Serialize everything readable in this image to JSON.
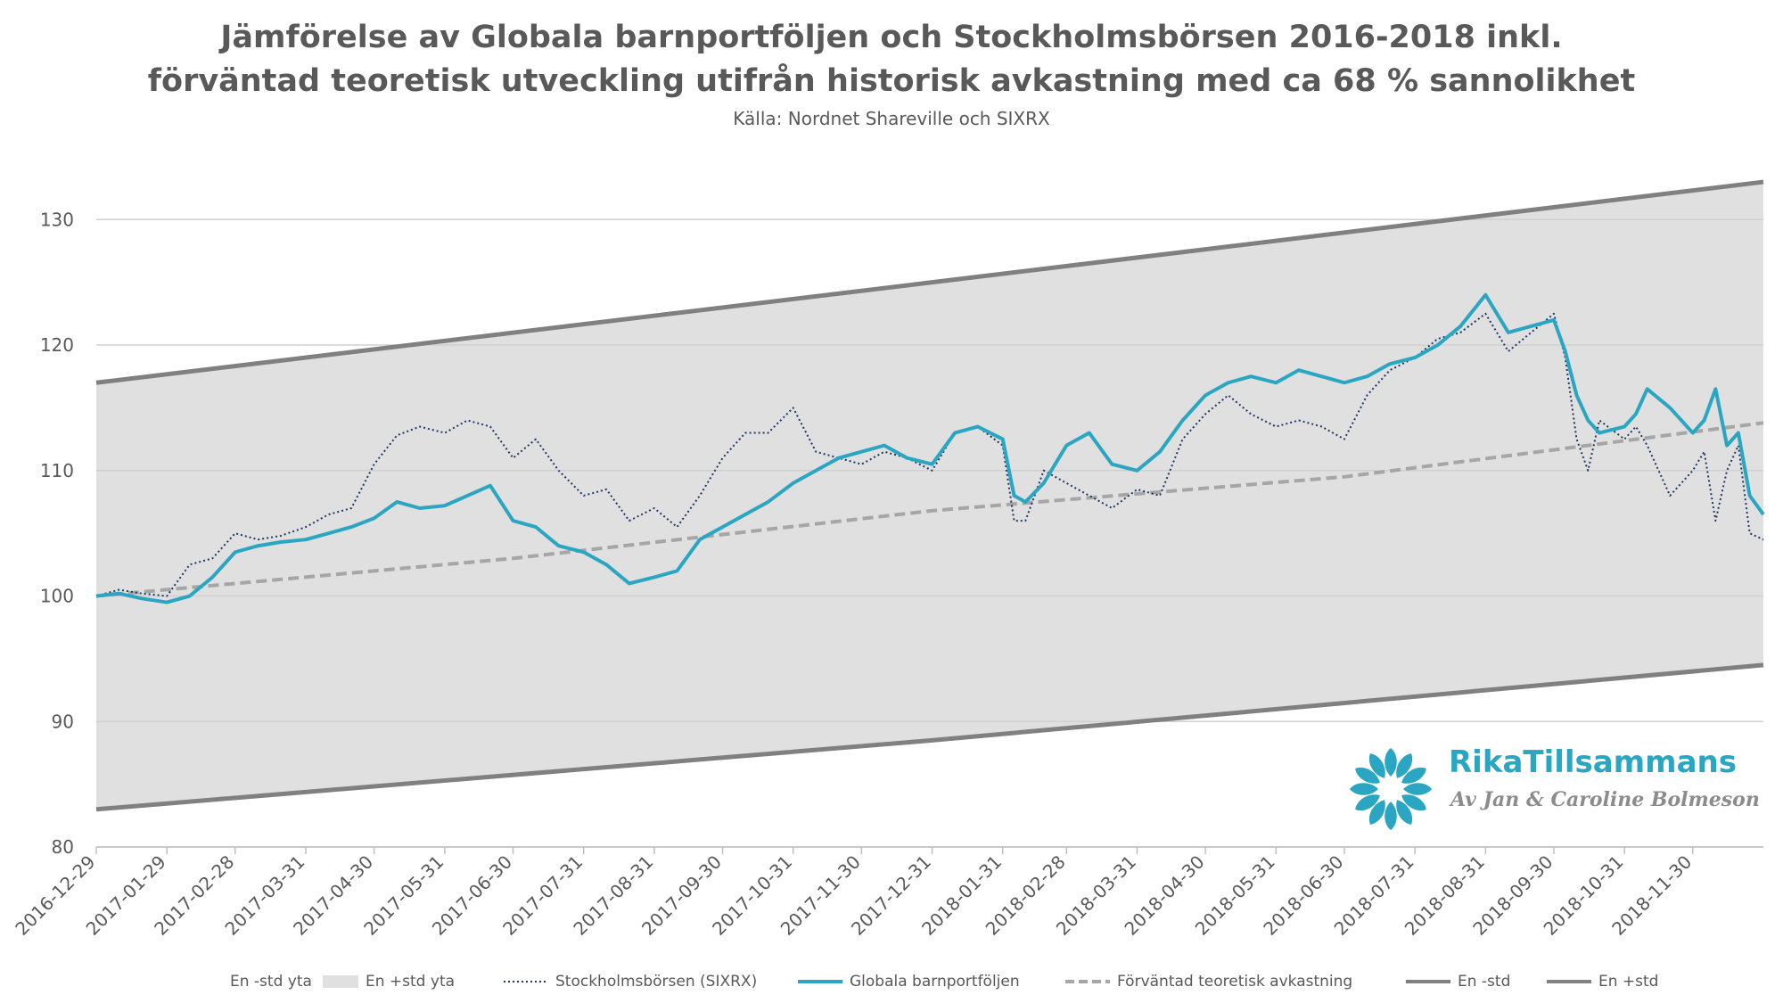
{
  "title_line1": "Jämförelse av Globala barnportföljen och Stockholmsbörsen 2016-2018 inkl.",
  "title_line2": "förväntad teoretisk utveckling utifrån historisk avkastning med ca 68 % sannolikhet",
  "subtitle": "Källa: Nordnet Shareville och SIXRX",
  "logo": {
    "name": "RikaTillsammans",
    "byline": "Av Jan & Caroline Bolmeson",
    "icon": "flower-icon",
    "color": "#2aa6c2"
  },
  "legend": [
    {
      "label": "En -std yta",
      "key": "lower_area"
    },
    {
      "label": "En +std yta",
      "key": "upper_area"
    },
    {
      "label": "Stockholmsbörsen (SIXRX)",
      "key": "sixrx"
    },
    {
      "label": "Globala barnportföljen",
      "key": "portfolio"
    },
    {
      "label": "Förväntad teoretisk avkastning",
      "key": "expected"
    },
    {
      "label": "En -std",
      "key": "lower"
    },
    {
      "label": "En +std",
      "key": "upper"
    }
  ],
  "chart_data": {
    "type": "line",
    "title": "Jämförelse av Globala barnportföljen och Stockholmsbörsen 2016-2018 inkl. förväntad teoretisk utveckling utifrån historisk avkastning med ca 68 % sannolikhet",
    "subtitle": "Källa: Nordnet Shareville och SIXRX",
    "xlabel": "",
    "ylabel": "",
    "ylim": [
      80,
      134
    ],
    "y_ticks": [
      80,
      90,
      100,
      110,
      120,
      130
    ],
    "x_ticks": [
      "2016-12-29",
      "2017-01-29",
      "2017-02-28",
      "2017-03-31",
      "2017-04-30",
      "2017-05-31",
      "2017-06-30",
      "2017-07-31",
      "2017-08-31",
      "2017-09-30",
      "2017-10-31",
      "2017-11-30",
      "2017-12-31",
      "2018-01-31",
      "2018-02-28",
      "2018-03-31",
      "2018-04-30",
      "2018-05-31",
      "2018-06-30",
      "2018-07-31",
      "2018-08-31",
      "2018-09-30",
      "2018-10-31",
      "2018-11-30"
    ],
    "x_range": [
      "2016-12-29",
      "2018-12-31"
    ],
    "grid": "horizontal",
    "legend_position": "bottom",
    "colors": {
      "portfolio": "#2aa6c2",
      "sixrx": "#1f3864",
      "expected": "#a6a6a6",
      "band": "#e0e0e0",
      "std_lines": "#808080"
    },
    "series": [
      {
        "name": "En +std",
        "key": "upper",
        "style": "solid",
        "x": [
          "2016-12-29",
          "2017-12-31",
          "2018-12-31"
        ],
        "values": [
          117.0,
          125.0,
          133.0
        ]
      },
      {
        "name": "En -std",
        "key": "lower",
        "style": "solid",
        "x": [
          "2016-12-29",
          "2017-12-31",
          "2018-12-31"
        ],
        "values": [
          83.0,
          88.5,
          94.5
        ]
      },
      {
        "name": "Förväntad teoretisk avkastning",
        "key": "expected",
        "style": "dashed",
        "x": [
          "2016-12-29",
          "2017-06-30",
          "2017-12-31",
          "2018-06-30",
          "2018-12-31"
        ],
        "values": [
          100.0,
          103.0,
          106.8,
          109.5,
          113.8
        ]
      },
      {
        "name": "Stockholmsbörsen (SIXRX)",
        "key": "sixrx",
        "style": "dotted",
        "x": [
          "2016-12-29",
          "2017-01-08",
          "2017-01-18",
          "2017-01-29",
          "2017-02-08",
          "2017-02-18",
          "2017-02-28",
          "2017-03-10",
          "2017-03-20",
          "2017-03-31",
          "2017-04-10",
          "2017-04-20",
          "2017-04-30",
          "2017-05-10",
          "2017-05-20",
          "2017-05-31",
          "2017-06-10",
          "2017-06-20",
          "2017-06-30",
          "2017-07-10",
          "2017-07-20",
          "2017-07-31",
          "2017-08-10",
          "2017-08-20",
          "2017-08-31",
          "2017-09-10",
          "2017-09-20",
          "2017-09-30",
          "2017-10-10",
          "2017-10-20",
          "2017-10-31",
          "2017-11-10",
          "2017-11-20",
          "2017-11-30",
          "2017-12-10",
          "2017-12-20",
          "2017-12-31",
          "2018-01-10",
          "2018-01-20",
          "2018-01-31",
          "2018-02-05",
          "2018-02-10",
          "2018-02-18",
          "2018-02-28",
          "2018-03-10",
          "2018-03-20",
          "2018-03-31",
          "2018-04-10",
          "2018-04-20",
          "2018-04-30",
          "2018-05-10",
          "2018-05-20",
          "2018-05-31",
          "2018-06-10",
          "2018-06-20",
          "2018-06-30",
          "2018-07-10",
          "2018-07-20",
          "2018-07-31",
          "2018-08-10",
          "2018-08-20",
          "2018-08-31",
          "2018-09-10",
          "2018-09-20",
          "2018-09-30",
          "2018-10-05",
          "2018-10-10",
          "2018-10-15",
          "2018-10-20",
          "2018-10-31",
          "2018-11-05",
          "2018-11-10",
          "2018-11-20",
          "2018-11-30",
          "2018-12-05",
          "2018-12-10",
          "2018-12-15",
          "2018-12-20",
          "2018-12-25",
          "2018-12-31"
        ],
        "values": [
          100.0,
          100.5,
          100.2,
          100.0,
          102.5,
          103.0,
          105.0,
          104.5,
          104.8,
          105.5,
          106.5,
          107.0,
          110.5,
          112.8,
          113.5,
          113.0,
          114.0,
          113.5,
          111.0,
          112.5,
          110.0,
          108.0,
          108.5,
          106.0,
          107.0,
          105.5,
          108.0,
          111.0,
          113.0,
          113.0,
          115.0,
          111.5,
          111.0,
          110.5,
          111.5,
          111.0,
          110.0,
          113.0,
          113.5,
          112.0,
          106.0,
          106.0,
          110.0,
          109.0,
          108.0,
          107.0,
          108.5,
          108.0,
          112.5,
          114.5,
          116.0,
          114.5,
          113.5,
          114.0,
          113.5,
          112.5,
          116.0,
          118.0,
          119.0,
          120.5,
          121.0,
          122.5,
          119.5,
          121.0,
          122.5,
          119.0,
          112.5,
          110.0,
          114.0,
          112.5,
          113.5,
          112.0,
          108.0,
          110.0,
          111.5,
          106.0,
          110.0,
          112.0,
          105.0,
          104.5
        ]
      },
      {
        "name": "Globala barnportföljen",
        "key": "portfolio",
        "style": "solid",
        "x": [
          "2016-12-29",
          "2017-01-08",
          "2017-01-18",
          "2017-01-29",
          "2017-02-08",
          "2017-02-18",
          "2017-02-28",
          "2017-03-10",
          "2017-03-20",
          "2017-03-31",
          "2017-04-10",
          "2017-04-20",
          "2017-04-30",
          "2017-05-10",
          "2017-05-20",
          "2017-05-31",
          "2017-06-10",
          "2017-06-20",
          "2017-06-30",
          "2017-07-10",
          "2017-07-20",
          "2017-07-31",
          "2017-08-10",
          "2017-08-20",
          "2017-08-31",
          "2017-09-10",
          "2017-09-20",
          "2017-09-30",
          "2017-10-10",
          "2017-10-20",
          "2017-10-31",
          "2017-11-10",
          "2017-11-20",
          "2017-11-30",
          "2017-12-10",
          "2017-12-20",
          "2017-12-31",
          "2018-01-10",
          "2018-01-20",
          "2018-01-31",
          "2018-02-05",
          "2018-02-10",
          "2018-02-18",
          "2018-02-28",
          "2018-03-10",
          "2018-03-20",
          "2018-03-31",
          "2018-04-10",
          "2018-04-20",
          "2018-04-30",
          "2018-05-10",
          "2018-05-20",
          "2018-05-31",
          "2018-06-10",
          "2018-06-20",
          "2018-06-30",
          "2018-07-10",
          "2018-07-20",
          "2018-07-31",
          "2018-08-10",
          "2018-08-20",
          "2018-08-31",
          "2018-09-10",
          "2018-09-20",
          "2018-09-30",
          "2018-10-05",
          "2018-10-10",
          "2018-10-15",
          "2018-10-20",
          "2018-10-31",
          "2018-11-05",
          "2018-11-10",
          "2018-11-20",
          "2018-11-30",
          "2018-12-05",
          "2018-12-10",
          "2018-12-15",
          "2018-12-20",
          "2018-12-25",
          "2018-12-31"
        ],
        "values": [
          100.0,
          100.2,
          99.8,
          99.5,
          100.0,
          101.5,
          103.5,
          104.0,
          104.3,
          104.5,
          105.0,
          105.5,
          106.2,
          107.5,
          107.0,
          107.2,
          108.0,
          108.8,
          106.0,
          105.5,
          104.0,
          103.5,
          102.5,
          101.0,
          101.5,
          102.0,
          104.5,
          105.5,
          106.5,
          107.5,
          109.0,
          110.0,
          111.0,
          111.5,
          112.0,
          111.0,
          110.5,
          113.0,
          113.5,
          112.5,
          108.0,
          107.5,
          109.0,
          112.0,
          113.0,
          110.5,
          110.0,
          111.5,
          114.0,
          116.0,
          117.0,
          117.5,
          117.0,
          118.0,
          117.5,
          117.0,
          117.5,
          118.5,
          119.0,
          120.0,
          121.5,
          124.0,
          121.0,
          121.5,
          122.0,
          119.5,
          116.0,
          114.0,
          113.0,
          113.5,
          114.5,
          116.5,
          115.0,
          113.0,
          114.0,
          116.5,
          112.0,
          113.0,
          108.0,
          106.5
        ]
      }
    ]
  }
}
